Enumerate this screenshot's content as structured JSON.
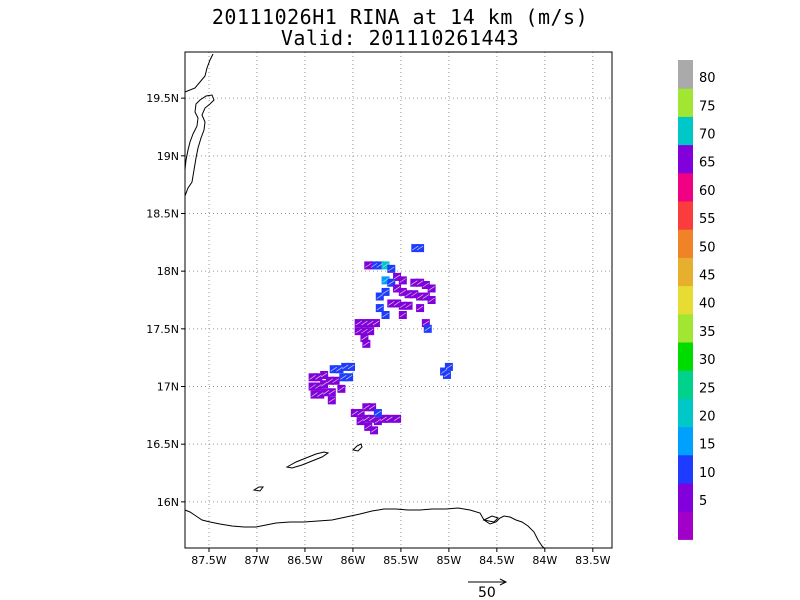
{
  "title": {
    "line1": "20111026H1 RINA at 14 km (m/s)",
    "line2": "Valid: 201110261443"
  },
  "map": {
    "lon_range": [
      -87.75,
      -83.3
    ],
    "lat_range": [
      15.6,
      19.9
    ],
    "lon_ticks": [
      {
        "value": -87.5,
        "label": "87.5W"
      },
      {
        "value": -87.0,
        "label": "87W"
      },
      {
        "value": -86.5,
        "label": "86.5W"
      },
      {
        "value": -86.0,
        "label": "86W"
      },
      {
        "value": -85.5,
        "label": "85.5W"
      },
      {
        "value": -85.0,
        "label": "85W"
      },
      {
        "value": -84.5,
        "label": "84.5W"
      },
      {
        "value": -84.0,
        "label": "84W"
      },
      {
        "value": -83.5,
        "label": "83.5W"
      }
    ],
    "lat_ticks": [
      {
        "value": 16.0,
        "label": "16N"
      },
      {
        "value": 16.5,
        "label": "16.5N"
      },
      {
        "value": 17.0,
        "label": "17N"
      },
      {
        "value": 17.5,
        "label": "17.5N"
      },
      {
        "value": 18.0,
        "label": "18N"
      },
      {
        "value": 18.5,
        "label": "18.5N"
      },
      {
        "value": 19.0,
        "label": "19N"
      },
      {
        "value": 19.5,
        "label": "19.5N"
      }
    ],
    "grid": true
  },
  "colorbar": {
    "colors": [
      "#a000c8",
      "#8200dc",
      "#1e3cff",
      "#00a0ff",
      "#00c8c8",
      "#00d28c",
      "#00dc00",
      "#a0e632",
      "#e6dc32",
      "#e6af2d",
      "#f08228",
      "#fa3c3c",
      "#f00082",
      "#8200dc",
      "#00c8c8",
      "#a0e632",
      "#aaaaaa"
    ],
    "labels": [
      "5",
      "10",
      "15",
      "20",
      "25",
      "30",
      "35",
      "40",
      "45",
      "50",
      "55",
      "60",
      "65",
      "70",
      "75",
      "80"
    ]
  },
  "reference_vector": {
    "label": "50"
  },
  "wind_cells": [
    {
      "lon": -85.78,
      "lat": 18.05,
      "c": "#1e3cff"
    },
    {
      "lon": -85.72,
      "lat": 18.05,
      "c": "#1e3cff"
    },
    {
      "lon": -85.66,
      "lat": 18.05,
      "c": "#00c8c8"
    },
    {
      "lon": -85.6,
      "lat": 18.02,
      "c": "#1e3cff"
    },
    {
      "lon": -85.84,
      "lat": 18.05,
      "c": "#8200dc"
    },
    {
      "lon": -85.54,
      "lat": 17.95,
      "c": "#8200dc"
    },
    {
      "lon": -85.48,
      "lat": 17.92,
      "c": "#8200dc"
    },
    {
      "lon": -85.36,
      "lat": 17.9,
      "c": "#8200dc"
    },
    {
      "lon": -85.3,
      "lat": 17.9,
      "c": "#8200dc"
    },
    {
      "lon": -85.24,
      "lat": 17.88,
      "c": "#8200dc"
    },
    {
      "lon": -85.18,
      "lat": 17.85,
      "c": "#8200dc"
    },
    {
      "lon": -85.66,
      "lat": 17.92,
      "c": "#00a0ff"
    },
    {
      "lon": -85.6,
      "lat": 17.9,
      "c": "#1e3cff"
    },
    {
      "lon": -85.66,
      "lat": 17.82,
      "c": "#1e3cff"
    },
    {
      "lon": -85.72,
      "lat": 17.78,
      "c": "#1e3cff"
    },
    {
      "lon": -85.54,
      "lat": 17.85,
      "c": "#8200dc"
    },
    {
      "lon": -85.48,
      "lat": 17.82,
      "c": "#8200dc"
    },
    {
      "lon": -85.42,
      "lat": 17.8,
      "c": "#8200dc"
    },
    {
      "lon": -85.36,
      "lat": 17.8,
      "c": "#8200dc"
    },
    {
      "lon": -85.3,
      "lat": 17.78,
      "c": "#8200dc"
    },
    {
      "lon": -85.24,
      "lat": 17.78,
      "c": "#8200dc"
    },
    {
      "lon": -85.18,
      "lat": 17.75,
      "c": "#8200dc"
    },
    {
      "lon": -85.6,
      "lat": 17.72,
      "c": "#8200dc"
    },
    {
      "lon": -85.54,
      "lat": 17.72,
      "c": "#8200dc"
    },
    {
      "lon": -85.48,
      "lat": 17.7,
      "c": "#8200dc"
    },
    {
      "lon": -85.42,
      "lat": 17.7,
      "c": "#8200dc"
    },
    {
      "lon": -85.3,
      "lat": 17.68,
      "c": "#8200dc"
    },
    {
      "lon": -85.72,
      "lat": 17.68,
      "c": "#1e3cff"
    },
    {
      "lon": -85.66,
      "lat": 17.62,
      "c": "#1e3cff"
    },
    {
      "lon": -85.48,
      "lat": 17.62,
      "c": "#8200dc"
    },
    {
      "lon": -85.24,
      "lat": 17.55,
      "c": "#8200dc"
    },
    {
      "lon": -85.22,
      "lat": 17.5,
      "c": "#1e3cff"
    },
    {
      "lon": -85.94,
      "lat": 17.55,
      "c": "#8200dc"
    },
    {
      "lon": -85.88,
      "lat": 17.55,
      "c": "#8200dc"
    },
    {
      "lon": -85.82,
      "lat": 17.55,
      "c": "#8200dc"
    },
    {
      "lon": -85.76,
      "lat": 17.55,
      "c": "#8200dc"
    },
    {
      "lon": -85.94,
      "lat": 17.48,
      "c": "#8200dc"
    },
    {
      "lon": -85.88,
      "lat": 17.48,
      "c": "#8200dc"
    },
    {
      "lon": -85.82,
      "lat": 17.48,
      "c": "#8200dc"
    },
    {
      "lon": -85.88,
      "lat": 17.42,
      "c": "#8200dc"
    },
    {
      "lon": -85.86,
      "lat": 17.37,
      "c": "#8200dc"
    },
    {
      "lon": -85.35,
      "lat": 18.2,
      "c": "#1e3cff"
    },
    {
      "lon": -85.3,
      "lat": 18.2,
      "c": "#1e3cff"
    },
    {
      "lon": -85.05,
      "lat": 17.13,
      "c": "#1e3cff"
    },
    {
      "lon": -85.0,
      "lat": 17.17,
      "c": "#1e3cff"
    },
    {
      "lon": -85.02,
      "lat": 17.1,
      "c": "#1e3cff"
    },
    {
      "lon": -86.42,
      "lat": 17.08,
      "c": "#8200dc"
    },
    {
      "lon": -86.36,
      "lat": 17.08,
      "c": "#8200dc"
    },
    {
      "lon": -86.3,
      "lat": 17.1,
      "c": "#8200dc"
    },
    {
      "lon": -86.42,
      "lat": 17.0,
      "c": "#8200dc"
    },
    {
      "lon": -86.36,
      "lat": 17.0,
      "c": "#8200dc"
    },
    {
      "lon": -86.3,
      "lat": 17.02,
      "c": "#8200dc"
    },
    {
      "lon": -86.24,
      "lat": 17.05,
      "c": "#8200dc"
    },
    {
      "lon": -86.18,
      "lat": 17.05,
      "c": "#8200dc"
    },
    {
      "lon": -86.4,
      "lat": 16.93,
      "c": "#8200dc"
    },
    {
      "lon": -86.34,
      "lat": 16.93,
      "c": "#8200dc"
    },
    {
      "lon": -86.28,
      "lat": 16.95,
      "c": "#8200dc"
    },
    {
      "lon": -86.22,
      "lat": 16.95,
      "c": "#8200dc"
    },
    {
      "lon": -86.12,
      "lat": 16.98,
      "c": "#8200dc"
    },
    {
      "lon": -86.2,
      "lat": 17.15,
      "c": "#1e3cff"
    },
    {
      "lon": -86.14,
      "lat": 17.15,
      "c": "#1e3cff"
    },
    {
      "lon": -86.08,
      "lat": 17.17,
      "c": "#1e3cff"
    },
    {
      "lon": -86.02,
      "lat": 17.17,
      "c": "#1e3cff"
    },
    {
      "lon": -86.1,
      "lat": 17.08,
      "c": "#1e3cff"
    },
    {
      "lon": -86.04,
      "lat": 17.08,
      "c": "#1e3cff"
    },
    {
      "lon": -86.22,
      "lat": 16.88,
      "c": "#8200dc"
    },
    {
      "lon": -85.98,
      "lat": 16.77,
      "c": "#8200dc"
    },
    {
      "lon": -85.92,
      "lat": 16.77,
      "c": "#8200dc"
    },
    {
      "lon": -85.86,
      "lat": 16.82,
      "c": "#8200dc"
    },
    {
      "lon": -85.8,
      "lat": 16.82,
      "c": "#8200dc"
    },
    {
      "lon": -85.92,
      "lat": 16.7,
      "c": "#8200dc"
    },
    {
      "lon": -85.86,
      "lat": 16.72,
      "c": "#8200dc"
    },
    {
      "lon": -85.8,
      "lat": 16.72,
      "c": "#8200dc"
    },
    {
      "lon": -85.74,
      "lat": 16.7,
      "c": "#8200dc"
    },
    {
      "lon": -85.84,
      "lat": 16.65,
      "c": "#8200dc"
    },
    {
      "lon": -85.78,
      "lat": 16.62,
      "c": "#8200dc"
    },
    {
      "lon": -85.68,
      "lat": 16.72,
      "c": "#8200dc"
    },
    {
      "lon": -85.62,
      "lat": 16.72,
      "c": "#8200dc"
    },
    {
      "lon": -85.54,
      "lat": 16.72,
      "c": "#8200dc"
    },
    {
      "lon": -85.74,
      "lat": 16.77,
      "c": "#1e3cff"
    }
  ]
}
